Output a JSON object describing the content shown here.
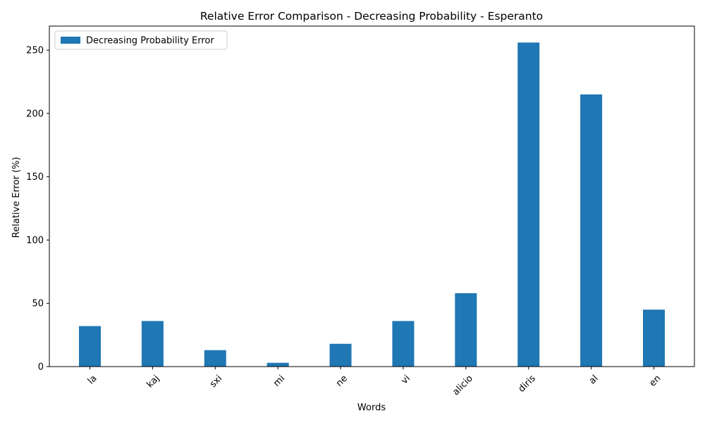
{
  "chart_data": {
    "type": "bar",
    "title": "Relative Error Comparison - Decreasing Probability - Esperanto",
    "xlabel": "Words",
    "ylabel": "Relative Error (%)",
    "categories": [
      "la",
      "kaj",
      "sxi",
      "mi",
      "ne",
      "vi",
      "alicio",
      "diris",
      "al",
      "en"
    ],
    "series": [
      {
        "name": "Decreasing Probability Error",
        "color": "#1f77b4",
        "values": [
          32,
          36,
          13,
          3,
          18,
          36,
          58,
          256,
          215,
          45
        ]
      }
    ],
    "ylim": [
      0,
      269
    ],
    "yticks": [
      0,
      50,
      100,
      150,
      200,
      250
    ],
    "grid": false,
    "legend_position": "upper-left"
  }
}
